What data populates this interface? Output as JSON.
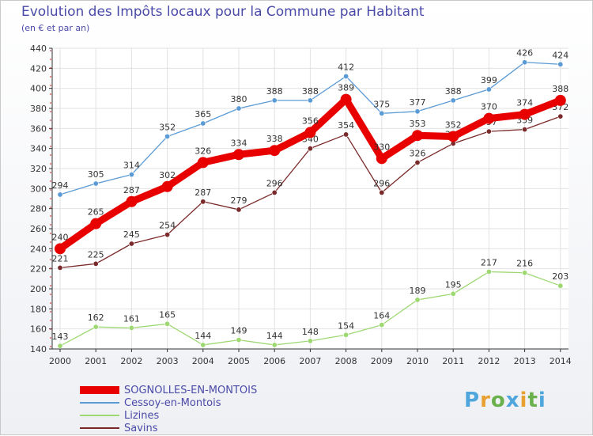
{
  "chart_data": {
    "type": "line",
    "title": "Evolution des Impôts locaux pour la Commune par Habitant",
    "subtitle": "(en € et par an)",
    "xlabel": "",
    "ylabel": "",
    "ylim": [
      140,
      440
    ],
    "yticks": [
      "140",
      "160",
      "180",
      "200",
      "220",
      "240",
      "260",
      "280",
      "300",
      "320",
      "340",
      "360",
      "380",
      "400",
      "420",
      "440"
    ],
    "categories": [
      "2000",
      "2001",
      "2002",
      "2003",
      "2004",
      "2005",
      "2006",
      "2007",
      "2008",
      "2009",
      "2010",
      "2011",
      "2012",
      "2013",
      "2014"
    ],
    "series": [
      {
        "name": "Cessoy-en-Montois",
        "color": "#5b9bd5",
        "values": [
          294,
          305,
          314,
          352,
          365,
          380,
          388,
          388,
          412,
          375,
          377,
          388,
          399,
          426,
          424
        ]
      },
      {
        "name": "Lizines",
        "color": "#9ed873",
        "values": [
          143,
          162,
          161,
          165,
          144,
          149,
          144,
          148,
          154,
          164,
          189,
          195,
          217,
          216,
          203
        ]
      },
      {
        "name": "Savins",
        "color": "#7a2a2a",
        "values": [
          221,
          225,
          245,
          254,
          287,
          279,
          296,
          340,
          354,
          296,
          326,
          345,
          357,
          359,
          372
        ]
      },
      {
        "name": "SOGNOLLES-EN-MONTOIS",
        "color": "#e80000",
        "values": [
          240,
          265,
          287,
          302,
          326,
          334,
          338,
          356,
          389,
          330,
          353,
          352,
          370,
          374,
          388
        ]
      }
    ],
    "legend": [
      {
        "name": "SOGNOLLES-EN-MONTOIS",
        "color": "#e80000"
      },
      {
        "name": "Cessoy-en-Montois",
        "color": "#5b9bd5"
      },
      {
        "name": "Lizines",
        "color": "#9ed873"
      },
      {
        "name": "Savins",
        "color": "#7a2a2a"
      }
    ],
    "legend_position": "bottom-left",
    "grid": true
  },
  "logo": {
    "text": "Proxiti",
    "colors": [
      "#4ea6dc",
      "#e8a030",
      "#6ab04c"
    ]
  }
}
